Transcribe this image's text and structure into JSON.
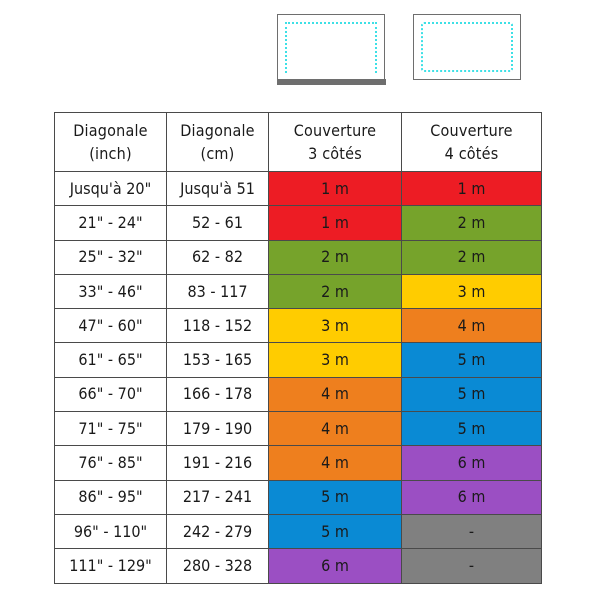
{
  "icons": [
    {
      "name": "screen-3-sides-icon",
      "description": "3-sided coverage (top, left, right)"
    },
    {
      "name": "screen-4-sides-icon",
      "description": "4-sided coverage (full frame)"
    }
  ],
  "colors": {
    "1 m": "#ED1C24",
    "2 m": "#76A32B",
    "3 m": "#FFCC00",
    "4 m": "#EE7F1E",
    "5 m": "#0A8AD4",
    "6 m": "#9B4FC3",
    "-": "#808080"
  },
  "table": {
    "headers": [
      {
        "line1": "Diagonale",
        "line2": "(inch)"
      },
      {
        "line1": "Diagonale",
        "line2": "(cm)"
      },
      {
        "line1": "Couverture",
        "line2": "3 côtés"
      },
      {
        "line1": "Couverture",
        "line2": "4 côtés"
      }
    ],
    "rows": [
      [
        "Jusqu'à 20\"",
        "Jusqu'à 51",
        "1 m",
        "1 m"
      ],
      [
        "21\" - 24\"",
        "52 - 61",
        "1 m",
        "2 m"
      ],
      [
        "25\" - 32\"",
        "62 - 82",
        "2 m",
        "2 m"
      ],
      [
        "33\" - 46\"",
        "83 - 117",
        "2 m",
        "3 m"
      ],
      [
        "47\" - 60\"",
        "118 - 152",
        "3 m",
        "4 m"
      ],
      [
        "61\" - 65\"",
        "153 - 165",
        "3 m",
        "5 m"
      ],
      [
        "66\" - 70\"",
        "166 - 178",
        "4 m",
        "5 m"
      ],
      [
        "71\" - 75\"",
        "179 - 190",
        "4 m",
        "5 m"
      ],
      [
        "76\" - 85\"",
        "191 - 216",
        "4 m",
        "6 m"
      ],
      [
        "86\" - 95\"",
        "217 - 241",
        "5 m",
        "6 m"
      ],
      [
        "96\" - 110\"",
        "242 - 279",
        "5 m",
        "-"
      ],
      [
        "111\" - 129\"",
        "280 - 328",
        "6 m",
        "-"
      ]
    ]
  }
}
